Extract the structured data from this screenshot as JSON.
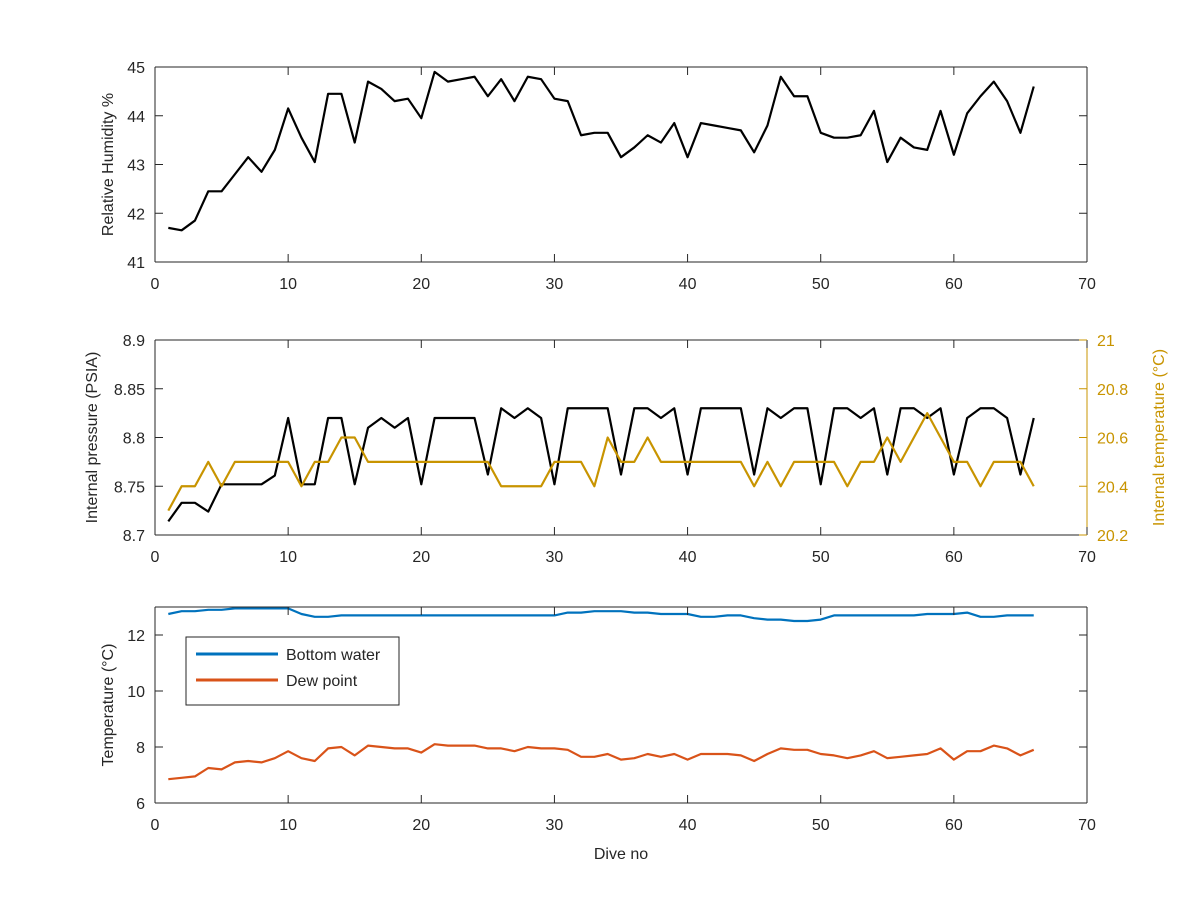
{
  "chart_data": [
    {
      "type": "line",
      "title": "",
      "xlabel": "",
      "ylabel": "Relative Humidity %",
      "xlim": [
        0,
        70
      ],
      "ylim": [
        41,
        45
      ],
      "xticks": [
        0,
        10,
        20,
        30,
        40,
        50,
        60,
        70
      ],
      "yticks": [
        41,
        42,
        43,
        44,
        45
      ],
      "grid": false,
      "series": [
        {
          "color": "#000000",
          "x": [
            1,
            2,
            3,
            4,
            5,
            6,
            7,
            8,
            9,
            10,
            11,
            12,
            13,
            14,
            15,
            16,
            17,
            18,
            19,
            20,
            21,
            22,
            23,
            24,
            25,
            26,
            27,
            28,
            29,
            30,
            31,
            32,
            33,
            34,
            35,
            36,
            37,
            38,
            39,
            40,
            41,
            42,
            43,
            44,
            45,
            46,
            47,
            48,
            49,
            50,
            51,
            52,
            53,
            54,
            55,
            56,
            57,
            58,
            59,
            60,
            61,
            62,
            63,
            64,
            65,
            66
          ],
          "y": [
            41.7,
            41.65,
            41.85,
            42.45,
            42.45,
            42.8,
            43.15,
            42.85,
            43.3,
            44.15,
            43.55,
            43.05,
            44.45,
            44.45,
            43.45,
            44.7,
            44.55,
            44.3,
            44.35,
            43.95,
            44.9,
            44.7,
            44.75,
            44.8,
            44.4,
            44.75,
            44.3,
            44.8,
            44.75,
            44.35,
            44.3,
            43.6,
            43.65,
            43.65,
            43.15,
            43.35,
            43.6,
            43.45,
            43.85,
            43.15,
            43.85,
            43.8,
            43.75,
            43.7,
            43.25,
            43.8,
            44.8,
            44.4,
            44.4,
            43.65,
            43.55,
            43.55,
            43.6,
            44.1,
            43.05,
            43.55,
            43.35,
            43.3,
            44.1,
            43.2,
            44.05,
            44.4,
            44.7,
            44.3,
            43.65,
            44.6
          ]
        }
      ]
    },
    {
      "type": "line",
      "title": "",
      "xlabel": "",
      "ylabel": "Internal pressure (PSIA)",
      "ylabel_right": "Internal temperature (°C)",
      "xlim": [
        0,
        70
      ],
      "ylim": [
        8.7,
        8.9
      ],
      "ylim_right": [
        20.2,
        21
      ],
      "xticks": [
        0,
        10,
        20,
        30,
        40,
        50,
        60,
        70
      ],
      "yticks": [
        "8.7",
        "8.75",
        "8.8",
        "8.85",
        "8.9"
      ],
      "yticks_right": [
        "20.2",
        "20.4",
        "20.6",
        "20.8",
        "21"
      ],
      "grid": false,
      "series": [
        {
          "color": "#000000",
          "axis": "left",
          "x": [
            1,
            2,
            3,
            4,
            5,
            6,
            7,
            8,
            9,
            10,
            11,
            12,
            13,
            14,
            15,
            16,
            17,
            18,
            19,
            20,
            21,
            22,
            23,
            24,
            25,
            26,
            27,
            28,
            29,
            30,
            31,
            32,
            33,
            34,
            35,
            36,
            37,
            38,
            39,
            40,
            41,
            42,
            43,
            44,
            45,
            46,
            47,
            48,
            49,
            50,
            51,
            52,
            53,
            54,
            55,
            56,
            57,
            58,
            59,
            60,
            61,
            62,
            63,
            64,
            65,
            66
          ],
          "y": [
            8.714,
            8.733,
            8.733,
            8.724,
            8.752,
            8.752,
            8.752,
            8.752,
            8.761,
            8.82,
            8.752,
            8.752,
            8.82,
            8.82,
            8.752,
            8.81,
            8.82,
            8.81,
            8.82,
            8.752,
            8.82,
            8.82,
            8.82,
            8.82,
            8.762,
            8.83,
            8.82,
            8.83,
            8.82,
            8.752,
            8.83,
            8.83,
            8.83,
            8.83,
            8.762,
            8.83,
            8.83,
            8.82,
            8.83,
            8.762,
            8.83,
            8.83,
            8.83,
            8.83,
            8.762,
            8.83,
            8.82,
            8.83,
            8.83,
            8.752,
            8.83,
            8.83,
            8.82,
            8.83,
            8.762,
            8.83,
            8.83,
            8.82,
            8.83,
            8.762,
            8.82,
            8.83,
            8.83,
            8.82,
            8.762,
            8.82
          ]
        },
        {
          "color": "#C89400",
          "axis": "right",
          "x": [
            1,
            2,
            3,
            4,
            5,
            6,
            7,
            8,
            9,
            10,
            11,
            12,
            13,
            14,
            15,
            16,
            17,
            18,
            19,
            20,
            21,
            22,
            23,
            24,
            25,
            26,
            27,
            28,
            29,
            30,
            31,
            32,
            33,
            34,
            35,
            36,
            37,
            38,
            39,
            40,
            41,
            42,
            43,
            44,
            45,
            46,
            47,
            48,
            49,
            50,
            51,
            52,
            53,
            54,
            55,
            56,
            57,
            58,
            59,
            60,
            61,
            62,
            63,
            64,
            65,
            66
          ],
          "y": [
            20.3,
            20.4,
            20.4,
            20.5,
            20.4,
            20.5,
            20.5,
            20.5,
            20.5,
            20.5,
            20.4,
            20.5,
            20.5,
            20.6,
            20.6,
            20.5,
            20.5,
            20.5,
            20.5,
            20.5,
            20.5,
            20.5,
            20.5,
            20.5,
            20.5,
            20.4,
            20.4,
            20.4,
            20.4,
            20.5,
            20.5,
            20.5,
            20.4,
            20.6,
            20.5,
            20.5,
            20.6,
            20.5,
            20.5,
            20.5,
            20.5,
            20.5,
            20.5,
            20.5,
            20.4,
            20.5,
            20.4,
            20.5,
            20.5,
            20.5,
            20.5,
            20.4,
            20.5,
            20.5,
            20.6,
            20.5,
            20.6,
            20.7,
            20.6,
            20.5,
            20.5,
            20.4,
            20.5,
            20.5,
            20.5,
            20.4
          ]
        }
      ]
    },
    {
      "type": "line",
      "title": "",
      "xlabel": "Dive no",
      "ylabel": "Temperature (°C)",
      "xlim": [
        0,
        70
      ],
      "ylim": [
        6,
        13
      ],
      "xticks": [
        0,
        10,
        20,
        30,
        40,
        50,
        60,
        70
      ],
      "yticks": [
        6,
        8,
        10,
        12
      ],
      "grid": false,
      "legend_position": "top-left",
      "series": [
        {
          "name": "Bottom water",
          "color": "#0072BD",
          "x": [
            1,
            2,
            3,
            4,
            5,
            6,
            7,
            8,
            9,
            10,
            11,
            12,
            13,
            14,
            15,
            16,
            17,
            18,
            19,
            20,
            21,
            22,
            23,
            24,
            25,
            26,
            27,
            28,
            29,
            30,
            31,
            32,
            33,
            34,
            35,
            36,
            37,
            38,
            39,
            40,
            41,
            42,
            43,
            44,
            45,
            46,
            47,
            48,
            49,
            50,
            51,
            52,
            53,
            54,
            55,
            56,
            57,
            58,
            59,
            60,
            61,
            62,
            63,
            64,
            65,
            66
          ],
          "y": [
            12.75,
            12.85,
            12.85,
            12.9,
            12.9,
            12.95,
            12.95,
            12.95,
            12.95,
            12.95,
            12.75,
            12.65,
            12.65,
            12.7,
            12.7,
            12.7,
            12.7,
            12.7,
            12.7,
            12.7,
            12.7,
            12.7,
            12.7,
            12.7,
            12.7,
            12.7,
            12.7,
            12.7,
            12.7,
            12.7,
            12.8,
            12.8,
            12.85,
            12.85,
            12.85,
            12.8,
            12.8,
            12.75,
            12.75,
            12.75,
            12.65,
            12.65,
            12.7,
            12.7,
            12.6,
            12.55,
            12.55,
            12.5,
            12.5,
            12.55,
            12.7,
            12.7,
            12.7,
            12.7,
            12.7,
            12.7,
            12.7,
            12.75,
            12.75,
            12.75,
            12.8,
            12.65,
            12.65,
            12.7,
            12.7,
            12.7
          ]
        },
        {
          "name": "Dew point",
          "color": "#D95319",
          "x": [
            1,
            2,
            3,
            4,
            5,
            6,
            7,
            8,
            9,
            10,
            11,
            12,
            13,
            14,
            15,
            16,
            17,
            18,
            19,
            20,
            21,
            22,
            23,
            24,
            25,
            26,
            27,
            28,
            29,
            30,
            31,
            32,
            33,
            34,
            35,
            36,
            37,
            38,
            39,
            40,
            41,
            42,
            43,
            44,
            45,
            46,
            47,
            48,
            49,
            50,
            51,
            52,
            53,
            54,
            55,
            56,
            57,
            58,
            59,
            60,
            61,
            62,
            63,
            64,
            65,
            66
          ],
          "y": [
            6.85,
            6.9,
            6.95,
            7.25,
            7.2,
            7.45,
            7.5,
            7.45,
            7.6,
            7.85,
            7.6,
            7.5,
            7.95,
            8.0,
            7.7,
            8.05,
            8.0,
            7.95,
            7.95,
            7.8,
            8.1,
            8.05,
            8.05,
            8.05,
            7.95,
            7.95,
            7.85,
            8.0,
            7.95,
            7.95,
            7.9,
            7.65,
            7.65,
            7.75,
            7.55,
            7.6,
            7.75,
            7.65,
            7.75,
            7.55,
            7.75,
            7.75,
            7.75,
            7.7,
            7.5,
            7.75,
            7.95,
            7.9,
            7.9,
            7.75,
            7.7,
            7.6,
            7.7,
            7.85,
            7.6,
            7.65,
            7.7,
            7.75,
            7.95,
            7.55,
            7.85,
            7.85,
            8.05,
            7.95,
            7.7,
            7.9
          ]
        }
      ]
    }
  ]
}
